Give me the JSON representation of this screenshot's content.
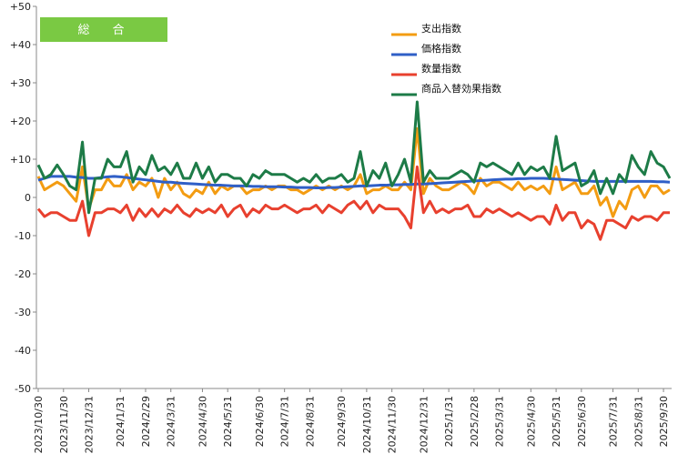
{
  "chart_data": {
    "type": "line",
    "title": "総　合",
    "title_box_color": "#7ac943",
    "ylim": [
      -50,
      50
    ],
    "yticks": [
      50,
      40,
      30,
      20,
      10,
      0,
      -10,
      -20,
      -30,
      -40,
      -50
    ],
    "ytick_labels": [
      "+50",
      "+40",
      "+30",
      "+20",
      "+10",
      "0",
      "-10",
      "-20",
      "-30",
      "-40",
      "-50"
    ],
    "grid": false,
    "legend_position": "top-right",
    "x_labels": [
      "2023/10/30",
      "2023/11/30",
      "2023/12/31",
      "2024/1/31",
      "2024/2/29",
      "2024/3/31",
      "2024/4/30",
      "2024/5/31",
      "2024/6/30",
      "2024/7/31",
      "2024/8/31",
      "2024/9/30",
      "2024/10/31",
      "2024/11/30",
      "2024/12/31",
      "2025/1/31",
      "2025/2/28",
      "2025/3/31",
      "2025/4/30",
      "2025/5/31",
      "2025/6/30",
      "2025/7/31",
      "2025/8/31",
      "2025/9/30"
    ],
    "n_points": 101,
    "label_indices": [
      0,
      4,
      8,
      13,
      17,
      21,
      26,
      30,
      35,
      39,
      43,
      48,
      52,
      56,
      61,
      65,
      69,
      73,
      78,
      82,
      86,
      91,
      95,
      99
    ],
    "series": [
      {
        "name": "支出指数",
        "color": "#f39c12",
        "values": [
          5.5,
          2,
          3,
          4,
          3,
          1,
          -1,
          8,
          -3,
          2,
          2,
          5,
          3,
          3,
          6,
          2,
          4,
          3,
          5,
          0,
          5,
          2,
          4,
          1,
          0,
          2,
          1,
          4,
          1,
          3,
          2,
          3,
          3,
          1,
          2,
          2,
          3,
          2,
          3,
          3,
          2,
          2,
          1,
          2,
          3,
          2,
          3,
          2,
          3,
          2,
          3,
          6,
          1,
          2,
          2,
          3,
          2,
          2,
          4,
          2,
          18,
          1,
          5,
          3,
          2,
          2,
          3,
          4,
          3,
          1,
          5,
          3,
          4,
          4,
          3,
          2,
          4,
          2,
          3,
          2,
          3,
          1,
          8,
          2,
          3,
          4,
          1,
          1,
          3,
          -2,
          0,
          -5,
          -1,
          -3,
          2,
          3,
          0,
          3,
          3,
          1,
          2
        ]
      },
      {
        "name": "価格指数",
        "color": "#2f5fc7",
        "values": [
          4.5,
          5,
          5.5,
          5.5,
          5.5,
          5.5,
          5.3,
          5.2,
          5,
          5,
          5.2,
          5.4,
          5.5,
          5.4,
          5.2,
          5,
          4.8,
          4.6,
          4.4,
          4.2,
          4,
          4,
          3.8,
          3.7,
          3.6,
          3.5,
          3.4,
          3.3,
          3.2,
          3.2,
          3.1,
          3,
          3,
          3,
          2.9,
          2.9,
          2.8,
          2.8,
          2.8,
          2.7,
          2.7,
          2.6,
          2.6,
          2.6,
          2.5,
          2.5,
          2.6,
          2.6,
          2.7,
          2.8,
          2.9,
          3,
          3,
          3.1,
          3.2,
          3.2,
          3.3,
          3.3,
          3.4,
          3.4,
          3.5,
          3.5,
          3.6,
          3.7,
          3.8,
          3.9,
          4,
          4.1,
          4.2,
          4.3,
          4.4,
          4.5,
          4.6,
          4.7,
          4.8,
          4.8,
          4.9,
          4.9,
          5,
          5,
          5,
          4.9,
          4.8,
          4.7,
          4.6,
          4.5,
          4.4,
          4.3,
          4.2,
          4.2,
          4.2,
          4.2,
          4.2,
          4.2,
          4.2,
          4.2,
          4.2,
          4.2,
          4.1,
          4.1,
          4
        ]
      },
      {
        "name": "数量指数",
        "color": "#e8402e",
        "values": [
          -3,
          -5,
          -4,
          -4,
          -5,
          -6,
          -6,
          -1,
          -10,
          -4,
          -4,
          -3,
          -3,
          -4,
          -2,
          -6,
          -3,
          -5,
          -3,
          -5,
          -3,
          -4,
          -2,
          -4,
          -5,
          -3,
          -4,
          -3,
          -4,
          -2,
          -5,
          -3,
          -2,
          -5,
          -3,
          -4,
          -2,
          -3,
          -3,
          -2,
          -3,
          -4,
          -3,
          -3,
          -2,
          -4,
          -2,
          -3,
          -4,
          -2,
          -1,
          -3,
          -1,
          -4,
          -2,
          -3,
          -3,
          -3,
          -5,
          -8,
          8,
          -4,
          -1,
          -4,
          -3,
          -4,
          -3,
          -3,
          -2,
          -5,
          -5,
          -3,
          -4,
          -3,
          -4,
          -5,
          -4,
          -5,
          -6,
          -5,
          -5,
          -7,
          -2,
          -6,
          -4,
          -4,
          -8,
          -6,
          -7,
          -11,
          -6,
          -6,
          -7,
          -8,
          -5,
          -6,
          -5,
          -5,
          -6,
          -4,
          -4
        ]
      },
      {
        "name": "商品入替効果指数",
        "color": "#1d7b47",
        "values": [
          8.5,
          5,
          6,
          8.5,
          6,
          3,
          2,
          14.5,
          -4,
          5,
          5,
          10,
          8,
          8,
          12,
          4,
          8,
          6,
          11,
          7,
          8,
          6,
          9,
          5,
          5,
          9,
          5,
          8,
          4,
          6,
          6,
          5,
          5,
          3,
          6,
          5,
          7,
          6,
          6,
          6,
          5,
          4,
          5,
          4,
          6,
          4,
          5,
          5,
          6,
          4,
          5,
          12,
          3,
          7,
          5,
          9,
          3,
          6,
          10,
          4,
          25,
          4,
          7,
          5,
          5,
          5,
          6,
          7,
          6,
          4,
          9,
          8,
          9,
          8,
          7,
          6,
          9,
          6,
          8,
          7,
          8,
          5,
          16,
          7,
          8,
          9,
          3,
          4,
          7,
          1,
          5,
          1,
          6,
          4,
          11,
          8,
          6,
          12,
          9,
          8,
          5
        ]
      }
    ]
  }
}
